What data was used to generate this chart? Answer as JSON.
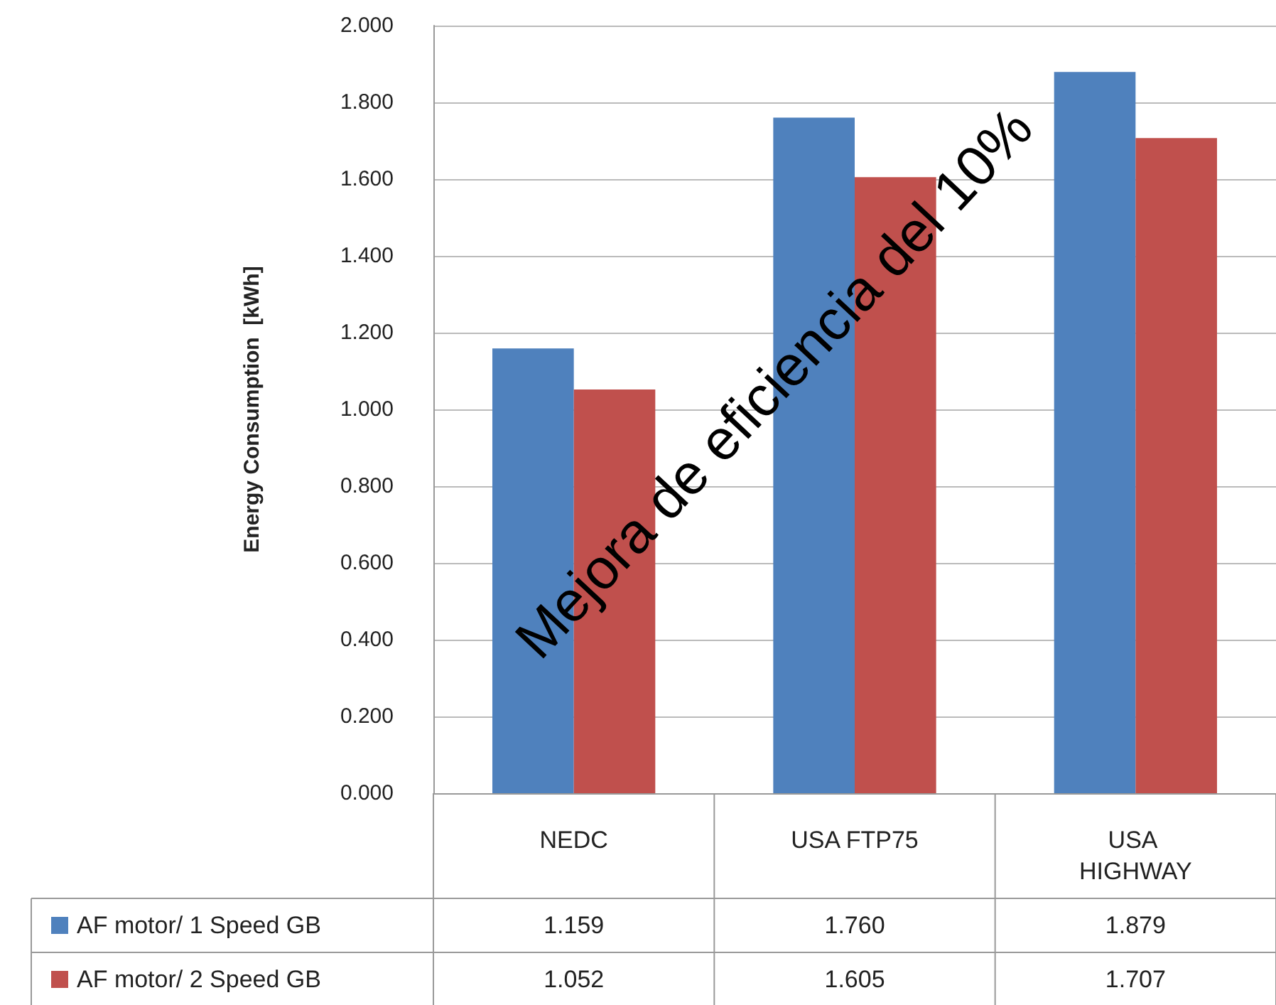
{
  "chart_data": {
    "type": "bar",
    "ylabel": "Energy Consumption  [kWh]",
    "categories": [
      "NEDC",
      "USA FTP75",
      "USA HIGHWAY"
    ],
    "series": [
      {
        "name": "AF motor/ 1 Speed GB",
        "color": "#4f81bd",
        "values": [
          1.159,
          1.76,
          1.879
        ],
        "value_labels": [
          "1.159",
          "1.760",
          "1.879"
        ]
      },
      {
        "name": "AF motor/ 2 Speed GB",
        "color": "#c0504d",
        "values": [
          1.052,
          1.605,
          1.707
        ],
        "value_labels": [
          "1.052",
          "1.605",
          "1.707"
        ]
      }
    ],
    "ylim": [
      0,
      2
    ],
    "yticks": [
      {
        "value": 0,
        "label": "0.000"
      },
      {
        "value": 0.2,
        "label": "0.200"
      },
      {
        "value": 0.4,
        "label": "0.400"
      },
      {
        "value": 0.6,
        "label": "0.600"
      },
      {
        "value": 0.8,
        "label": "0.800"
      },
      {
        "value": 1,
        "label": "1.000"
      },
      {
        "value": 1.2,
        "label": "1.200"
      },
      {
        "value": 1.4,
        "label": "1.400"
      },
      {
        "value": 1.6,
        "label": "1.600"
      },
      {
        "value": 1.8,
        "label": "1.800"
      },
      {
        "value": 2,
        "label": "2.000"
      }
    ],
    "grid": "y",
    "legend": "bottom",
    "annotations": [
      "Mejora de eficiencia del 10%"
    ]
  }
}
